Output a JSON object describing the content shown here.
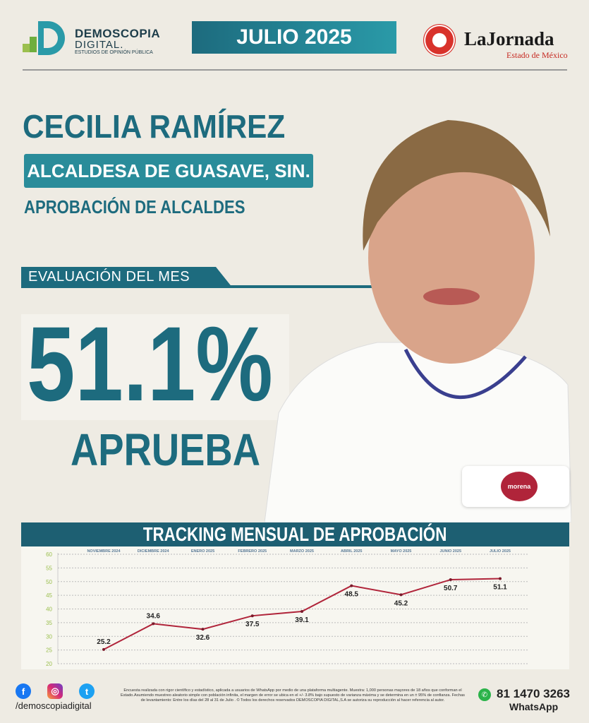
{
  "header": {
    "brand_line1": "DEMOSCOPIA",
    "brand_line2": "DIGITAL.",
    "brand_tagline": "ESTUDIOS DE OPINIÓN PÚBLICA",
    "month": "JULIO 2025",
    "partner": "LaJornada",
    "partner_sub": "Estado de México"
  },
  "candidate": {
    "name": "CECILIA RAMÍREZ",
    "role": "ALCALDESA DE GUASAVE, SIN.",
    "subtitle": "APROBACIÓN DE ALCALDES",
    "eval_label": "EVALUACIÓN DEL MES",
    "approval": "51.1%",
    "approval_label": "APRUEBA",
    "party": "morena"
  },
  "colors": {
    "primary": "#1d6b7e",
    "line": "#b0243a",
    "axis_ticks": "#9bbf4e"
  },
  "chart_data": {
    "type": "line",
    "title": "TRACKING MENSUAL DE APROBACIÓN",
    "categories": [
      "NOVIEMBRE 2024",
      "DICIEMBRE 2024",
      "ENERO 2025",
      "FEBRERO 2025",
      "MARZO 2025",
      "ABRIL 2025",
      "MAYO 2025",
      "JUNIO 2025",
      "JULIO 2025"
    ],
    "values": [
      25.2,
      34.6,
      32.6,
      37.5,
      39.1,
      48.5,
      45.2,
      50.7,
      51.1
    ],
    "labels": [
      "25.2",
      "34.6",
      "32.6",
      "37.5",
      "39.1",
      "48.5",
      "45.2",
      "50.7",
      "51.1"
    ],
    "ylim": [
      20,
      60
    ],
    "yticks": [
      "20",
      "25",
      "30",
      "35",
      "40",
      "45",
      "50",
      "55",
      "60"
    ],
    "grid": true,
    "xlabel": "",
    "ylabel": ""
  },
  "footer": {
    "handle": "/demoscopiadigital",
    "disclaimer": "Encuesta realizada con rigor científico y estadístico, aplicada a usuarios de WhatsApp por medio de una plataforma multiagente. Muestra: 1,000 personas mayores de 18 años que conforman el Estado.Asumiendo muestreo aleatorio simple con población infinita, el margen de error se ubica en el +/- 3.8% bajo supuesto de varianza máxima y se determina en un ± 95% de confianza. Fechas de levantamiento: Entre los días del 28 al 31 de Julio . © Todos los derechos reservados DEMOSCOPIA DIGITAL,S.A se autoriza su reproducción al hacer referencia al autor.",
    "phone": "81 1470 3263",
    "whatsapp": "WhatsApp",
    "social": [
      "facebook",
      "instagram",
      "twitter"
    ]
  }
}
